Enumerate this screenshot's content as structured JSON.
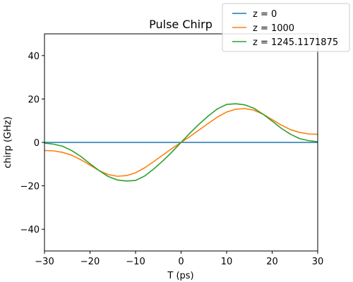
{
  "chart_data": {
    "type": "line",
    "title": "Pulse Chirp",
    "xlabel": "T (ps)",
    "ylabel": "chirp (GHz)",
    "xlim": [
      -30,
      30
    ],
    "ylim": [
      -50,
      50
    ],
    "xticks": [
      -30,
      -20,
      -10,
      0,
      10,
      20,
      30
    ],
    "yticks": [
      -40,
      -20,
      0,
      20,
      40
    ],
    "grid": false,
    "legend_position": "upper-right",
    "x": [
      -30,
      -28,
      -26,
      -24,
      -22,
      -20,
      -18,
      -16,
      -14,
      -12,
      -10,
      -8,
      -6,
      -4,
      -2,
      0,
      2,
      4,
      6,
      8,
      10,
      12,
      14,
      16,
      18,
      20,
      22,
      24,
      26,
      28,
      30
    ],
    "series": [
      {
        "name": "z = 0",
        "color": "#1f77b4",
        "values": [
          0,
          0,
          0,
          0,
          0,
          0,
          0,
          0,
          0,
          0,
          0,
          0,
          0,
          0,
          0,
          0,
          0,
          0,
          0,
          0,
          0,
          0,
          0,
          0,
          0,
          0,
          0,
          0,
          0,
          0,
          0
        ]
      },
      {
        "name": "z = 1000",
        "color": "#ff7f0e",
        "values": [
          -3.7,
          -3.9,
          -4.6,
          -5.9,
          -8.0,
          -10.5,
          -13.0,
          -14.8,
          -15.6,
          -15.3,
          -14.0,
          -11.7,
          -8.8,
          -5.8,
          -2.8,
          0,
          2.8,
          5.8,
          8.8,
          11.7,
          14.0,
          15.3,
          15.6,
          14.8,
          13.0,
          10.5,
          8.0,
          5.9,
          4.6,
          3.9,
          3.7
        ]
      },
      {
        "name": "z = 1245.1171875",
        "color": "#2ca02c",
        "values": [
          -0.3,
          -0.8,
          -1.8,
          -3.8,
          -6.5,
          -9.8,
          -13.0,
          -15.7,
          -17.3,
          -17.8,
          -17.5,
          -15.5,
          -12.2,
          -8.5,
          -4.4,
          0,
          4.4,
          8.5,
          12.2,
          15.5,
          17.5,
          17.8,
          17.3,
          15.7,
          13.0,
          9.8,
          6.5,
          3.8,
          1.8,
          0.8,
          0.3
        ]
      }
    ]
  }
}
